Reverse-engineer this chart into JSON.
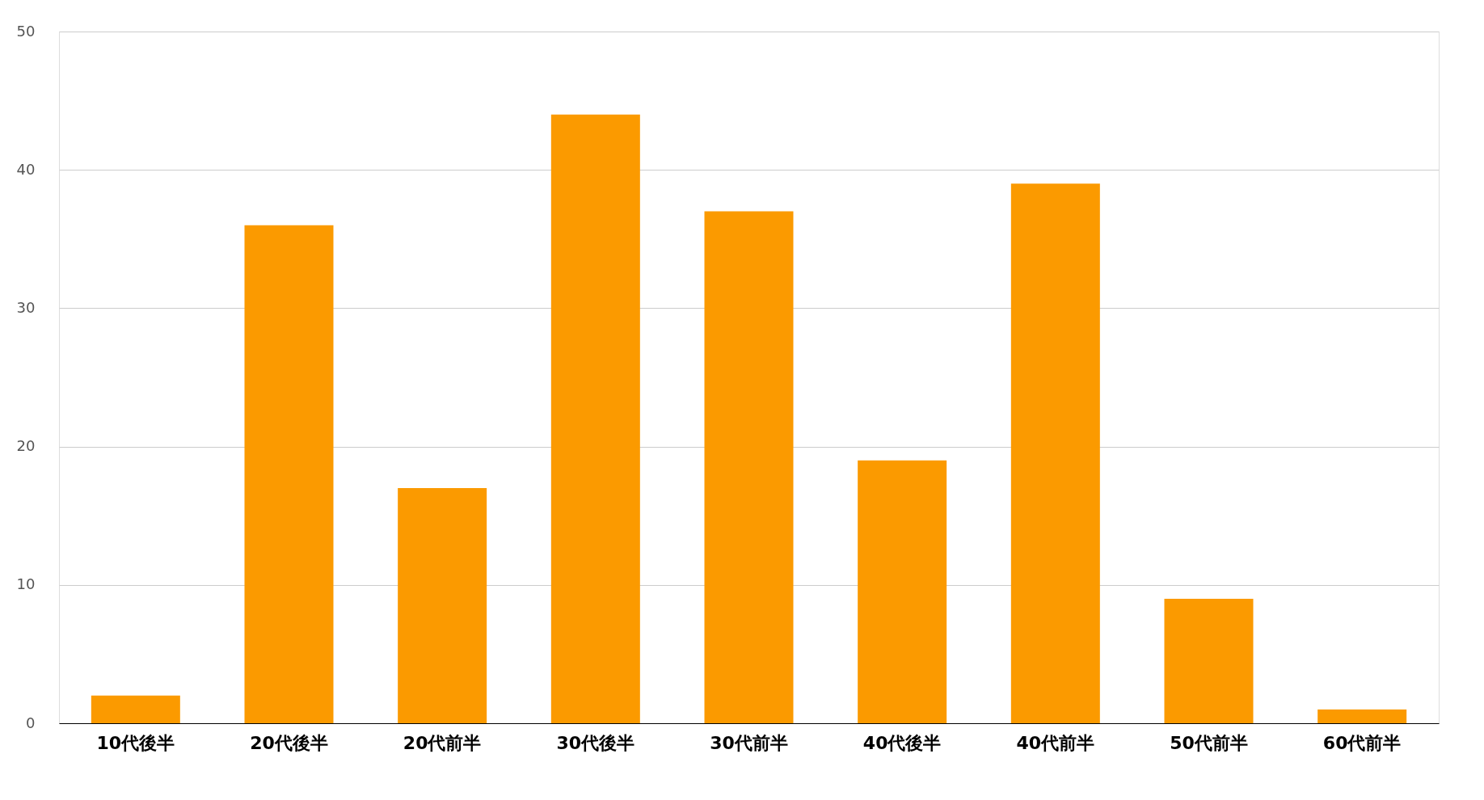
{
  "chart_data": {
    "type": "bar",
    "categories": [
      "10代後半",
      "20代後半",
      "20代前半",
      "30代後半",
      "30代前半",
      "40代後半",
      "40代前半",
      "50代前半",
      "60代前半"
    ],
    "values": [
      2,
      36,
      17,
      44,
      37,
      19,
      39,
      9,
      1
    ],
    "color": "#fb9a00",
    "ylim": [
      0,
      50
    ],
    "yticks": [
      0,
      10,
      20,
      30,
      40,
      50
    ],
    "grid": "y"
  }
}
